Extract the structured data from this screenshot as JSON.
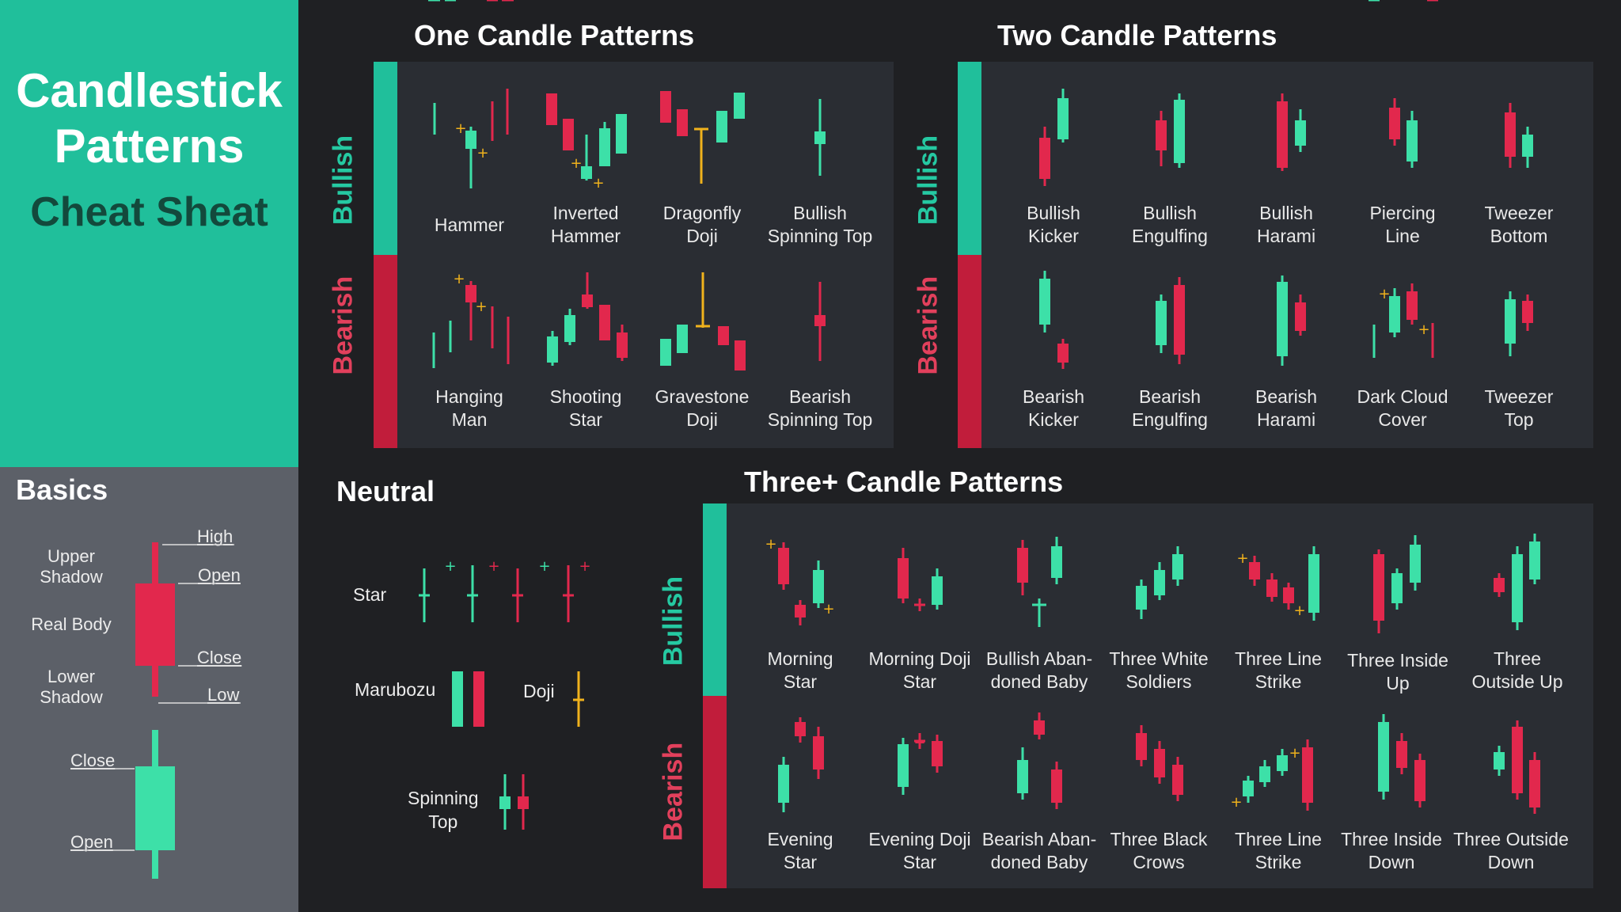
{
  "title": {
    "line1": "Candlestick",
    "line2": "Patterns",
    "subtitle": "Cheat Sheat"
  },
  "basics": {
    "title": "Basics",
    "upper_shadow": "Upper\nShadow",
    "real_body": "Real Body",
    "lower_shadow": "Lower\nShadow",
    "high": "High",
    "open": "Open",
    "close": "Close",
    "low": "Low",
    "bull_close": "Close",
    "bull_open": "Open"
  },
  "sections": {
    "one": "One Candle Patterns",
    "two": "Two Candle Patterns",
    "neutral": "Neutral",
    "three": "Three+ Candle Patterns"
  },
  "side_labels": {
    "bullish": "Bullish",
    "bearish": "Bearish"
  },
  "one_candle": {
    "bullish": [
      "Hammer",
      "Inverted\nHammer",
      "Dragonfly\nDoji",
      "Bullish\nSpinning Top"
    ],
    "bearish": [
      "Hanging\nMan",
      "Shooting\nStar",
      "Gravestone\nDoji",
      "Bearish\nSpinning Top"
    ]
  },
  "two_candle": {
    "bullish": [
      "Bullish\nKicker",
      "Bullish\nEngulfing",
      "Bullish\nHarami",
      "Piercing\nLine",
      "Tweezer\nBottom"
    ],
    "bearish": [
      "Bearish\nKicker",
      "Bearish\nEngulfing",
      "Bearish\nHarami",
      "Dark Cloud\nCover",
      "Tweezer\nTop"
    ]
  },
  "neutral": {
    "star": "Star",
    "marubozu": "Marubozu",
    "doji": "Doji",
    "spinning_top": "Spinning\nTop"
  },
  "three_candle": {
    "bullish": [
      "Morning\nStar",
      "Morning Doji\nStar",
      "Bullish Aban-\ndoned Baby",
      "Three White\nSoldiers",
      "Three Line\nStrike",
      "Three Inside\nUp",
      "Three\nOutside Up"
    ],
    "bearish": [
      "Evening\nStar",
      "Evening Doji\nStar",
      "Bearish Aban-\ndoned Baby",
      "Three Black\nCrows",
      "Three Line\nStrike",
      "Three Inside\nDown",
      "Three Outside\nDown"
    ]
  },
  "colors": {
    "bull": "#3de0a8",
    "bear": "#e2284d",
    "doji": "#f0b21c",
    "accent": "#20bf9b",
    "bear_bar": "#c11d3b"
  }
}
